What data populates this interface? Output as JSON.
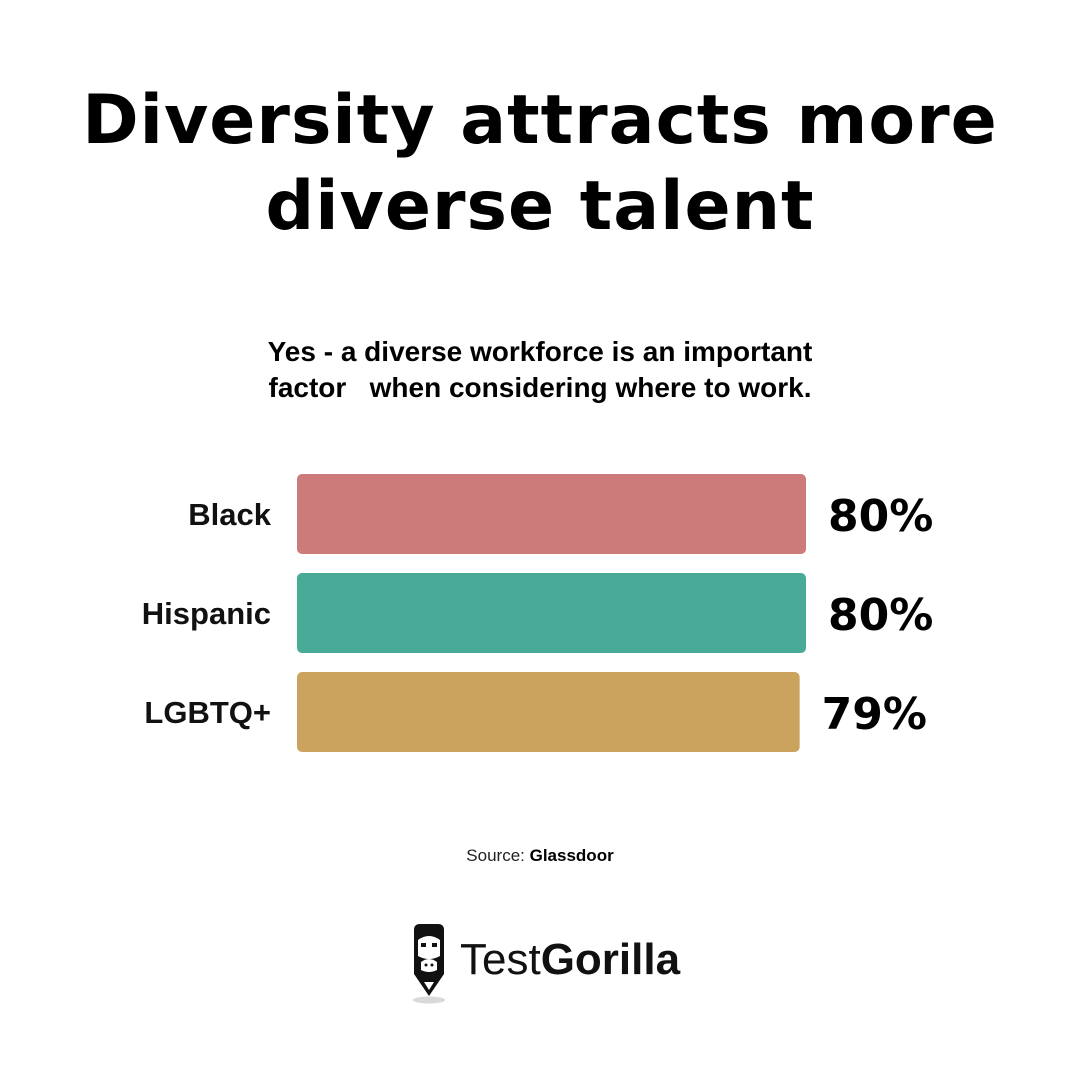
{
  "title": {
    "line1": "Diversity attracts more",
    "line2": "diverse talent"
  },
  "subtitle": {
    "line1": "Yes - a diverse workforce is an important",
    "line2": "factor   when considering where to work."
  },
  "chart_data": {
    "type": "bar",
    "orientation": "horizontal",
    "categories": [
      "Black",
      "Hispanic",
      "LGBTQ+"
    ],
    "values": [
      80,
      80,
      79
    ],
    "value_labels": [
      "80%",
      "80%",
      "79%"
    ],
    "colors": [
      "#cc7a7a",
      "#48ab98",
      "#cba35e"
    ],
    "xlim": [
      0,
      80
    ],
    "grid": false
  },
  "source": {
    "prefix": "Source:",
    "name": "Glassdoor"
  },
  "brand": {
    "part1": "Test",
    "part2": "Gorilla",
    "logo_icon": "gorilla-pencil-icon"
  }
}
